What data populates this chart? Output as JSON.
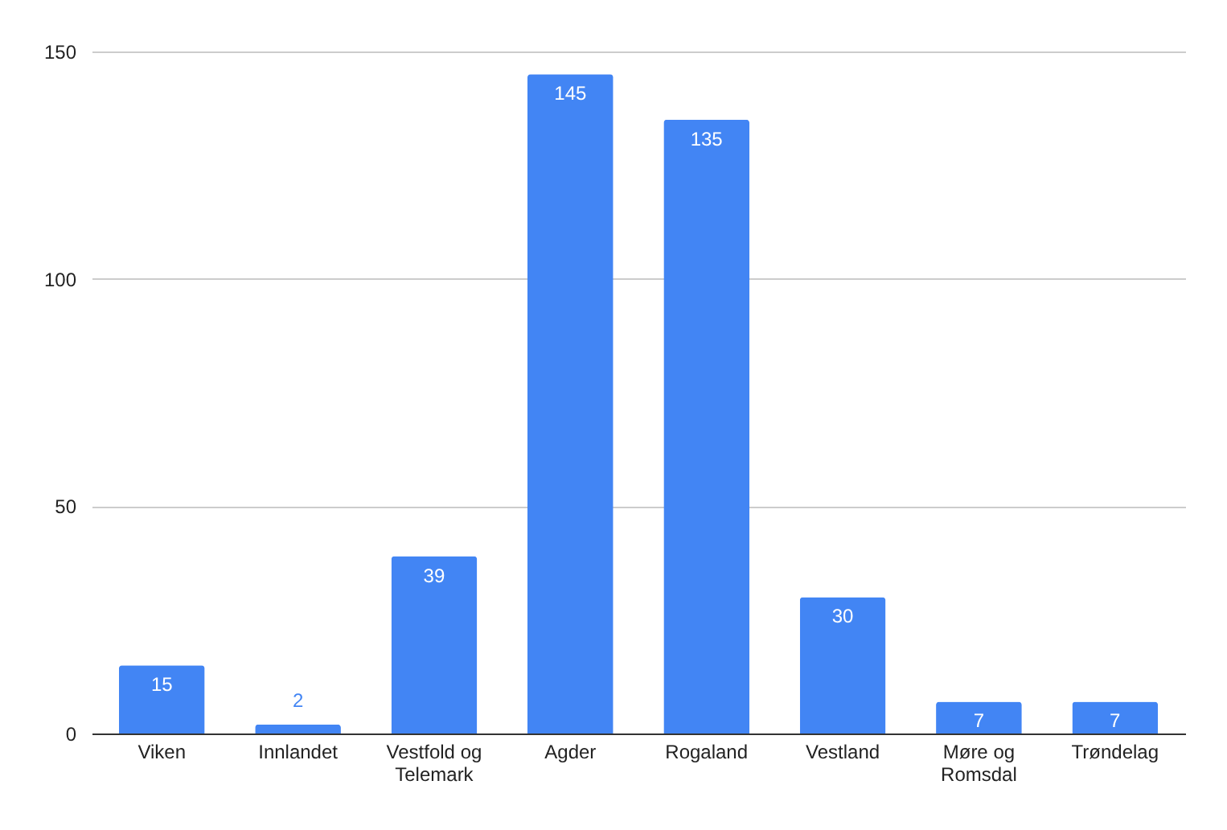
{
  "chart_data": {
    "type": "bar",
    "categories": [
      "Viken",
      "Innlandet",
      "Vestfold og Telemark",
      "Agder",
      "Rogaland",
      "Vestland",
      "Møre og Romsdal",
      "Trøndelag"
    ],
    "values": [
      15,
      2,
      39,
      145,
      135,
      30,
      7,
      7
    ],
    "color": "#4285f4",
    "ylim": [
      0,
      150
    ],
    "yticks": [
      0,
      50,
      100,
      150
    ],
    "grid": "y",
    "legend": false,
    "data_labels": true
  }
}
